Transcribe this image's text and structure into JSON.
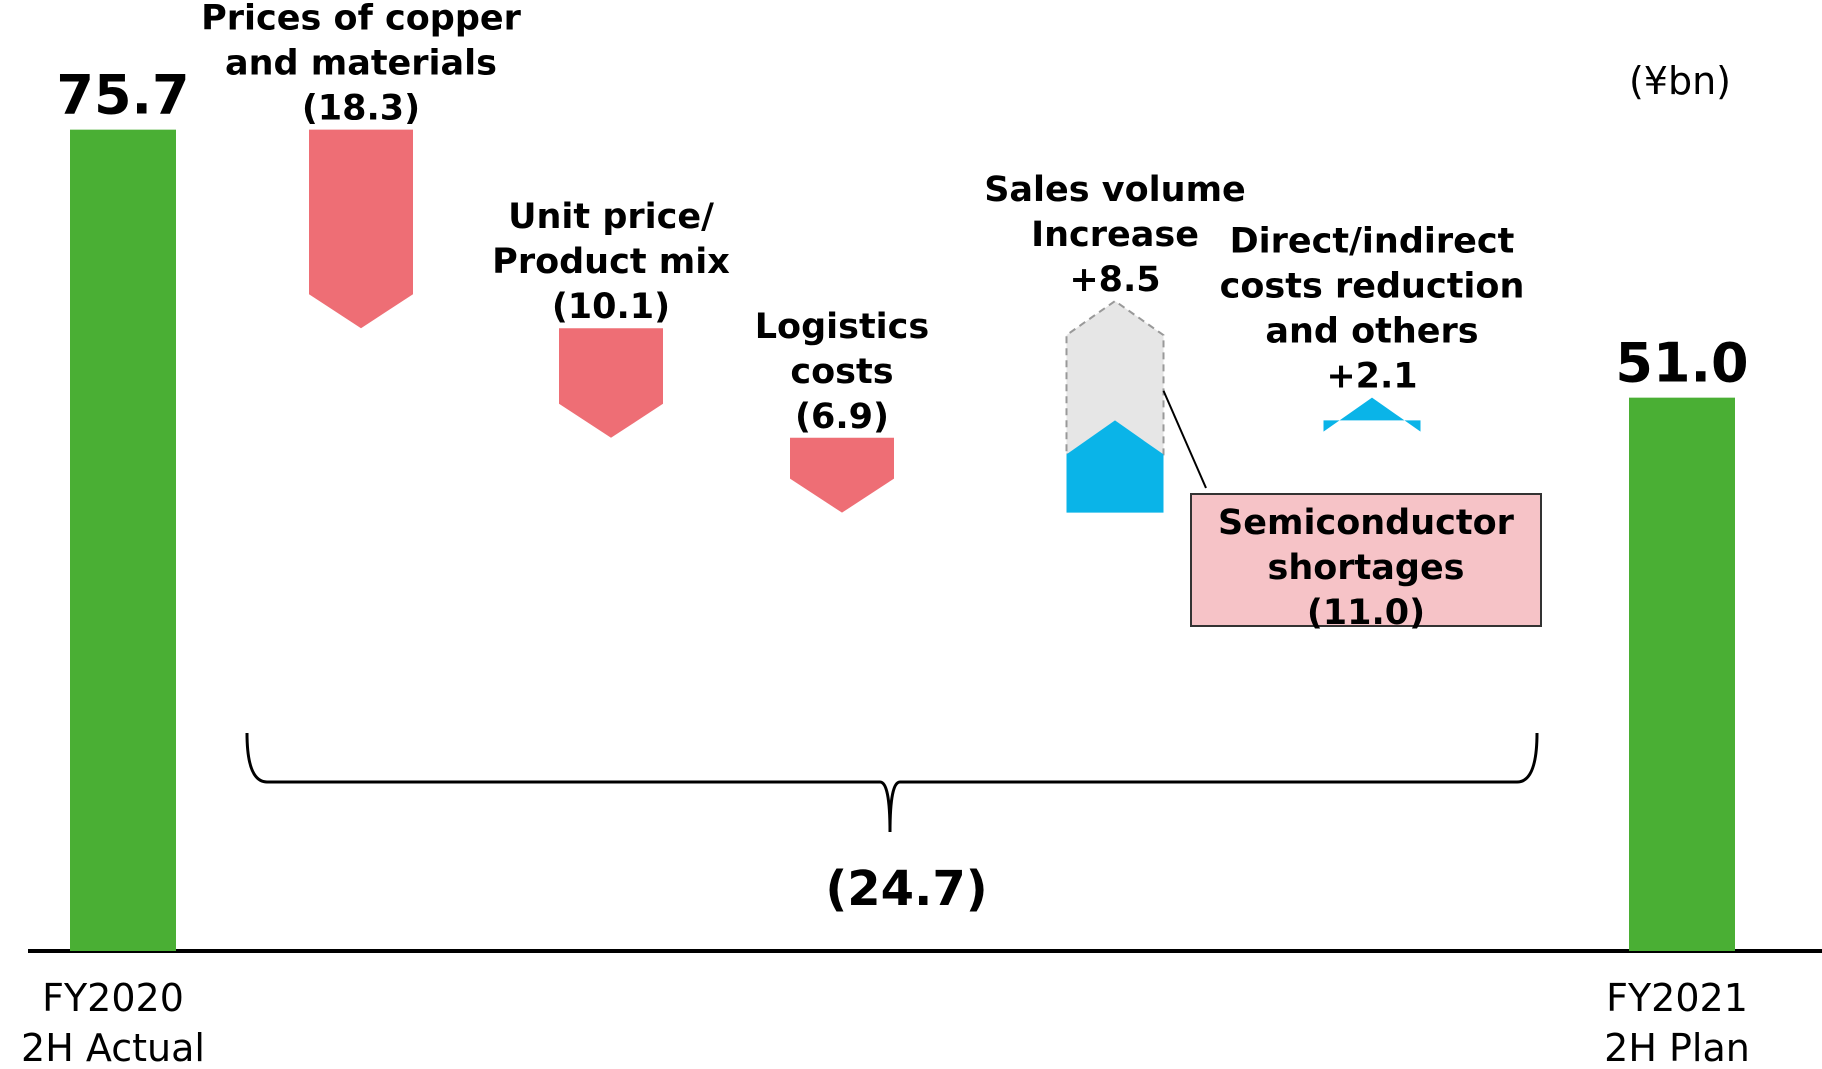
{
  "chart_data": {
    "type": "waterfall",
    "unit_label": "(¥bn)",
    "categories": [
      [
        "FY2020",
        "2H Actual"
      ],
      [
        "Prices of copper",
        "and materials"
      ],
      [
        "Unit price/",
        "Product mix"
      ],
      [
        "Logistics",
        "costs"
      ],
      [
        "Sales volume",
        "Increase"
      ],
      [
        "Direct/indirect",
        "costs reduction",
        "and others"
      ],
      [
        "FY2021",
        "2H Plan"
      ]
    ],
    "measure": [
      "absolute",
      "relative",
      "relative",
      "relative",
      "relative",
      "relative",
      "total"
    ],
    "values": [
      75.7,
      -18.3,
      -10.1,
      -6.9,
      8.5,
      2.1,
      51.0
    ],
    "value_labels": [
      "75.7",
      "(18.3)",
      "(10.1)",
      "(6.9)",
      "+8.5",
      "+2.1",
      "51.0"
    ],
    "colors": {
      "absolute": "#4aaf34",
      "decrease": "#ee6e75",
      "increase": "#0ab4e8"
    },
    "ylim": [
      0,
      80
    ],
    "annotation": {
      "lines": [
        "Semiconductor",
        "shortages"
      ],
      "value": -11.0,
      "value_label": "(11.0)",
      "category_index": 4,
      "color": "#e6e6e6",
      "box_color": "#f6c3c7"
    },
    "bracket": {
      "from": 1,
      "to": 5,
      "value": -24.7,
      "label": "(24.7)"
    }
  }
}
